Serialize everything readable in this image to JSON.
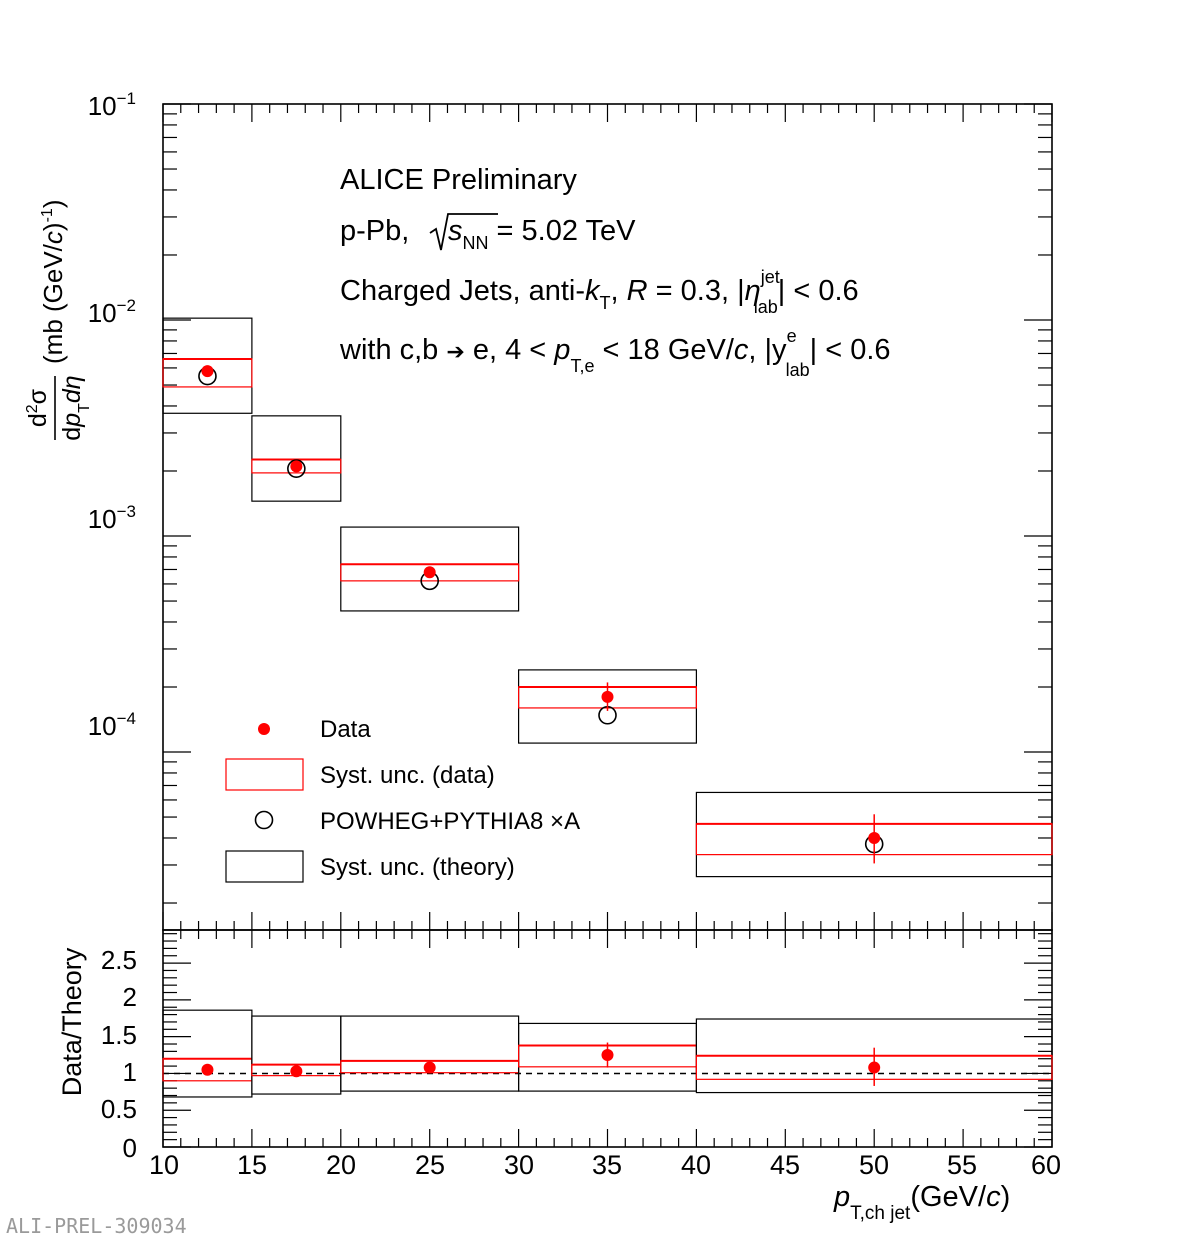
{
  "watermark": "ALI-PREL-309034",
  "colors": {
    "data": "#ff0000",
    "theory": "#000000",
    "frame": "#000000"
  },
  "annotations": {
    "line1": "ALICE Preliminary",
    "line2_a": "p-Pb, ",
    "line2_s": "s",
    "line2_nn": "NN",
    "line2_b": " = 5.02 TeV",
    "line3_a": "Charged Jets, anti-",
    "line3_k": "k",
    "line3_T": "T",
    "line3_b": ", ",
    "line3_R": "R",
    "line3_c": " = 0.3, |",
    "line3_eta": "η",
    "line3_jet": "jet",
    "line3_lab": "lab",
    "line3_d": "| < 0.6",
    "line4_a": "with c,b ",
    "line4_arrow": "➔",
    "line4_b": " e, 4 < ",
    "line4_p": "p",
    "line4_Te": "T,e",
    "line4_c": " < 18 GeV/",
    "line4_cc": "c",
    "line4_d": ", |y",
    "line4_e": "e",
    "line4_lab": "lab",
    "line4_f": "| < 0.6"
  },
  "legend": {
    "data": "Data",
    "syst_data": "Syst. unc. (data)",
    "theory": "POWHEG+PYTHIA8 ×A",
    "syst_theory": "Syst. unc. (theory)"
  },
  "axis_labels": {
    "y_top": {
      "num_d": "d",
      "num_2": "2",
      "num_sigma": "σ",
      "den_d": "d",
      "den_p": "p",
      "den_T": "T",
      "den_deta": "dη",
      "units_a": "(mb (GeV/",
      "units_c": "c",
      "units_b": ")",
      "units_exp": "-1",
      "units_close": ")"
    },
    "y_bottom": "Data/Theory",
    "x": {
      "p": "p",
      "sub": "T,ch jet",
      "units_a": "(GeV/",
      "units_c": "c",
      "units_b": ")"
    }
  },
  "chart_data": [
    {
      "type": "scatter",
      "panel": "spectrum",
      "scale": "log",
      "xlim": [
        10,
        60
      ],
      "ylim": [
        1.5e-05,
        0.1
      ],
      "ytick_labels": [
        {
          "value": 0.1,
          "base": "10",
          "exp": "−1"
        },
        {
          "value": 0.01,
          "base": "10",
          "exp": "−2"
        },
        {
          "value": 0.001,
          "base": "10",
          "exp": "−3"
        },
        {
          "value": 0.0001,
          "base": "10",
          "exp": "−4"
        }
      ],
      "bins": [
        {
          "x_low": 10,
          "x_high": 15,
          "x": 12.5,
          "data": 0.0058,
          "stat_low": 0.0055,
          "stat_high": 0.006,
          "syst_data_low": 0.0049,
          "syst_data_high": 0.0066,
          "theory": 0.0055,
          "syst_theory_low": 0.0037,
          "syst_theory_high": 0.0102
        },
        {
          "x_low": 15,
          "x_high": 20,
          "x": 17.5,
          "data": 0.0021,
          "stat_low": 0.00198,
          "stat_high": 0.00222,
          "syst_data_low": 0.00196,
          "syst_data_high": 0.00226,
          "theory": 0.00205,
          "syst_theory_low": 0.00145,
          "syst_theory_high": 0.0036
        },
        {
          "x_low": 20,
          "x_high": 30,
          "x": 25,
          "data": 0.00068,
          "stat_low": 0.00064,
          "stat_high": 0.00072,
          "syst_data_low": 0.00062,
          "syst_data_high": 0.00074,
          "theory": 0.00062,
          "syst_theory_low": 0.00045,
          "syst_theory_high": 0.0011
        },
        {
          "x_low": 30,
          "x_high": 40,
          "x": 35,
          "data": 0.00018,
          "stat_low": 0.000155,
          "stat_high": 0.00021,
          "syst_data_low": 0.00016,
          "syst_data_high": 0.0002,
          "theory": 0.000148,
          "syst_theory_low": 0.00011,
          "syst_theory_high": 0.00024
        },
        {
          "x_low": 40,
          "x_high": 60,
          "x": 50,
          "data": 4e-05,
          "stat_low": 3.05e-05,
          "stat_high": 5.15e-05,
          "syst_data_low": 3.35e-05,
          "syst_data_high": 4.65e-05,
          "theory": 3.75e-05,
          "syst_theory_low": 2.65e-05,
          "syst_theory_high": 6.5e-05
        }
      ]
    },
    {
      "type": "scatter",
      "panel": "ratio",
      "xlabel": "p_T,ch jet (GeV/c)",
      "ylabel": "Data/Theory",
      "xlim": [
        10,
        60
      ],
      "ylim": [
        0,
        2.95
      ],
      "xticks": [
        10,
        15,
        20,
        25,
        30,
        35,
        40,
        45,
        50,
        55,
        60
      ],
      "yticks": [
        0,
        0.5,
        1,
        1.5,
        2,
        2.5
      ],
      "ytick_labels": [
        "0",
        "0.5",
        "1",
        "1.5",
        "2",
        "2.5"
      ],
      "reference_line": 1,
      "bins": [
        {
          "x_low": 10,
          "x_high": 15,
          "x": 12.5,
          "ratio": 1.05,
          "stat_low": 1.0,
          "stat_high": 1.1,
          "syst_data_low": 0.9,
          "syst_data_high": 1.2,
          "syst_theory_low": 0.68,
          "syst_theory_high": 1.86
        },
        {
          "x_low": 15,
          "x_high": 20,
          "x": 17.5,
          "ratio": 1.03,
          "stat_low": 0.96,
          "stat_high": 1.1,
          "syst_data_low": 0.97,
          "syst_data_high": 1.12,
          "syst_theory_low": 0.72,
          "syst_theory_high": 1.78
        },
        {
          "x_low": 20,
          "x_high": 30,
          "x": 25,
          "ratio": 1.08,
          "stat_low": 1.01,
          "stat_high": 1.15,
          "syst_data_low": 1.01,
          "syst_data_high": 1.17,
          "syst_theory_low": 0.76,
          "syst_theory_high": 1.78
        },
        {
          "x_low": 30,
          "x_high": 40,
          "x": 35,
          "ratio": 1.25,
          "stat_low": 1.08,
          "stat_high": 1.42,
          "syst_data_low": 1.09,
          "syst_data_high": 1.38,
          "syst_theory_low": 0.76,
          "syst_theory_high": 1.68
        },
        {
          "x_low": 40,
          "x_high": 60,
          "x": 50,
          "ratio": 1.08,
          "stat_low": 0.83,
          "stat_high": 1.35,
          "syst_data_low": 0.92,
          "syst_data_high": 1.24,
          "syst_theory_low": 0.74,
          "syst_theory_high": 1.74
        }
      ]
    }
  ]
}
